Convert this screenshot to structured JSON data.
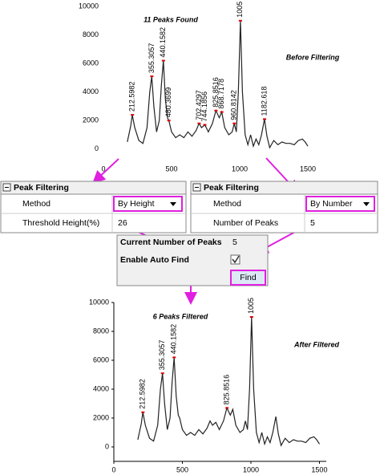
{
  "chart_data": [
    {
      "type": "line",
      "title": "11 Peaks Found",
      "annotation": "Before Filtering",
      "title_color": "#1c2fb8",
      "annotation_color": "#7ac143",
      "color": "#222222",
      "peak_color": "#e00000",
      "axes": false,
      "x": [
        175,
        200,
        212,
        230,
        260,
        290,
        320,
        340,
        355,
        370,
        390,
        410,
        425,
        440,
        455,
        470,
        480,
        500,
        530,
        560,
        590,
        620,
        650,
        680,
        702,
        720,
        744,
        770,
        800,
        825,
        850,
        868,
        890,
        920,
        945,
        960,
        975,
        990,
        1005,
        1020,
        1040,
        1060,
        1080,
        1100,
        1120,
        1140,
        1160,
        1182,
        1200,
        1220,
        1250,
        1280,
        1310,
        1340,
        1370,
        1400,
        1430,
        1460,
        1480,
        1500
      ],
      "values": [
        500,
        1600,
        2400,
        1500,
        600,
        400,
        1500,
        4000,
        5100,
        3000,
        1200,
        2000,
        4500,
        6200,
        3500,
        2200,
        2000,
        1200,
        800,
        1000,
        800,
        1200,
        900,
        1300,
        1800,
        1500,
        1700,
        1200,
        1800,
        2700,
        2200,
        2600,
        1500,
        1000,
        1200,
        1800,
        1200,
        4000,
        9000,
        4000,
        1000,
        300,
        1000,
        200,
        700,
        300,
        1000,
        2100,
        900,
        100,
        600,
        300,
        500,
        400,
        400,
        300,
        600,
        700,
        500,
        200
      ],
      "peaks": {
        "x": [
          212.5982,
          355.3057,
          440.1582,
          480.3699,
          702.4297,
          744.1856,
          825.8516,
          868.7178,
          960.8142,
          1005,
          1182.618
        ],
        "y": [
          2400,
          5100,
          6200,
          2000,
          1800,
          1700,
          2700,
          2600,
          1800,
          9000,
          2100
        ]
      },
      "xlim": [
        0,
        1600
      ],
      "ylim": [
        -800,
        10000
      ],
      "xticks": [
        0,
        500,
        1000,
        1500
      ],
      "yticks": [
        0,
        2000,
        4000,
        6000,
        8000,
        10000
      ]
    },
    {
      "type": "line",
      "title": "6 Peaks Filtered",
      "annotation": "After Filtered",
      "title_color": "#1c2fb8",
      "annotation_color": "#7ac143",
      "color": "#222222",
      "peak_color": "#e00000",
      "axes": true,
      "x": [
        175,
        200,
        212,
        230,
        260,
        290,
        320,
        340,
        355,
        370,
        390,
        410,
        425,
        440,
        455,
        470,
        480,
        500,
        530,
        560,
        590,
        620,
        650,
        680,
        702,
        720,
        744,
        770,
        800,
        825,
        850,
        868,
        890,
        920,
        945,
        960,
        975,
        990,
        1005,
        1020,
        1040,
        1060,
        1080,
        1100,
        1120,
        1140,
        1160,
        1182,
        1200,
        1220,
        1250,
        1280,
        1310,
        1340,
        1370,
        1400,
        1430,
        1460,
        1480,
        1500
      ],
      "values": [
        500,
        1600,
        2400,
        1500,
        600,
        400,
        1500,
        4000,
        5100,
        3000,
        1200,
        2000,
        4500,
        6200,
        3500,
        2200,
        2000,
        1200,
        800,
        1000,
        800,
        1200,
        900,
        1300,
        1800,
        1500,
        1700,
        1200,
        1800,
        2700,
        2200,
        2600,
        1500,
        1000,
        1200,
        1800,
        1200,
        4000,
        9000,
        4000,
        1000,
        300,
        1000,
        200,
        700,
        300,
        1000,
        2100,
        900,
        100,
        600,
        300,
        500,
        400,
        400,
        300,
        600,
        700,
        500,
        200
      ],
      "peaks": {
        "x": [
          212.5982,
          355.3057,
          440.1582,
          825.8516,
          1005
        ],
        "y": [
          2400,
          5100,
          6200,
          2700,
          9000
        ]
      },
      "xlim": [
        0,
        1550
      ],
      "ylim": [
        -1000,
        10000
      ],
      "xticks": [
        0,
        500,
        1000,
        1500
      ],
      "yticks": [
        0,
        2000,
        4000,
        6000,
        8000,
        10000
      ]
    }
  ],
  "panels": [
    {
      "title": "Peak Filtering",
      "rows": [
        [
          "Method",
          "By Height"
        ],
        [
          "Threshold Height(%)",
          26
        ]
      ]
    },
    {
      "title": "Peak Filtering",
      "rows": [
        [
          "Method",
          "By Number"
        ],
        [
          "Number of Peaks",
          5
        ]
      ]
    }
  ],
  "find_dialog": {
    "current_label": "Current Number of Peaks",
    "current_value": 5,
    "auto_label": "Enable Auto Find",
    "button": "Find"
  }
}
